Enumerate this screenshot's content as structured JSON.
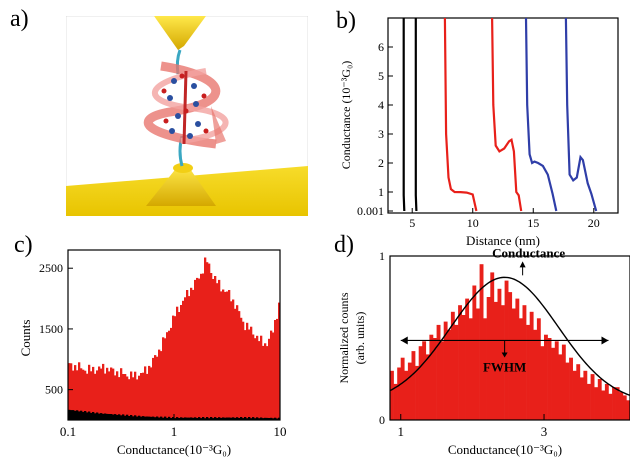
{
  "panels": {
    "a": {
      "letter": "a)"
    },
    "b": {
      "letter": "b)"
    },
    "c": {
      "letter": "c)"
    },
    "d": {
      "letter": "d)"
    }
  },
  "colors": {
    "red": "#e8201a",
    "blue": "#2f3ea8",
    "black": "#000000",
    "gold": "#f5d21a"
  },
  "chart_data": [
    {
      "type": "line",
      "panel": "b",
      "xlabel": "Distance (nm)",
      "ylabel": "Conductance (10⁻³G₀)",
      "xlim": [
        3,
        22
      ],
      "ylim": [
        0.001,
        7
      ],
      "y_scale": "break at 1 (log below, linear above)",
      "x_ticks": [
        5,
        10,
        15,
        20
      ],
      "y_ticks": [
        "0.001",
        "1",
        "2",
        "3",
        "4",
        "5",
        "6"
      ],
      "series": [
        {
          "color": "black",
          "x": [
            4.3,
            4.3,
            4.35
          ],
          "y": [
            7,
            0.3,
            0.001
          ]
        },
        {
          "color": "black",
          "x": [
            5.3,
            5.3,
            5.35
          ],
          "y": [
            7,
            0.3,
            0.001
          ]
        },
        {
          "color": "red",
          "x": [
            7.7,
            7.8,
            8.0,
            8.2,
            8.5,
            9.0,
            9.5,
            10.0,
            10.3
          ],
          "y": [
            7,
            3.0,
            1.5,
            1.1,
            1.0,
            0.95,
            0.8,
            0.4,
            0.001
          ]
        },
        {
          "color": "red",
          "x": [
            11.6,
            11.7,
            11.9,
            12.2,
            12.6,
            13.0,
            13.2,
            13.4,
            13.6,
            13.8,
            14.0
          ],
          "y": [
            7,
            4.0,
            2.6,
            2.4,
            2.5,
            2.75,
            2.8,
            2.4,
            1.0,
            0.3,
            0.001
          ]
        },
        {
          "color": "blue",
          "x": [
            14.4,
            14.5,
            14.7,
            14.9,
            15.1,
            15.4,
            15.8,
            16.2,
            16.6,
            16.9
          ],
          "y": [
            7,
            4.0,
            2.3,
            2.0,
            2.05,
            2.0,
            1.9,
            1.6,
            0.5,
            0.001
          ]
        },
        {
          "color": "blue",
          "x": [
            17.7,
            17.8,
            18.0,
            18.3,
            18.6,
            18.9,
            19.1,
            19.3,
            19.5,
            19.8,
            20.2
          ],
          "y": [
            7,
            4.0,
            1.6,
            1.4,
            1.5,
            2.2,
            2.1,
            1.7,
            1.3,
            0.5,
            0.001
          ]
        }
      ]
    },
    {
      "type": "bar",
      "panel": "c",
      "xlabel": "Conductance(10⁻³G₀)",
      "ylabel": "Counts",
      "x_scale": "log",
      "xlim": [
        0.1,
        10
      ],
      "ylim": [
        0,
        2800
      ],
      "x_ticks": [
        "0.1",
        "1",
        "10"
      ],
      "y_ticks": [
        "500",
        "1500",
        "2500"
      ],
      "series": [
        {
          "name": "",
          "color": "red",
          "x": [
            0.1,
            0.12,
            0.15,
            0.18,
            0.22,
            0.27,
            0.33,
            0.4,
            0.5,
            0.6,
            0.7,
            0.85,
            1.0,
            1.2,
            1.5,
            1.8,
            2.0,
            2.3,
            2.7,
            3.2,
            3.8,
            4.5,
            5.5,
            6.5,
            7.5,
            8.5,
            9.5,
            10
          ],
          "y": [
            900,
            880,
            820,
            830,
            860,
            800,
            760,
            720,
            760,
            900,
            1100,
            1400,
            1700,
            1950,
            2200,
            2400,
            2650,
            2400,
            2200,
            2100,
            1900,
            1600,
            1450,
            1300,
            1250,
            1450,
            1800,
            1950
          ]
        },
        {
          "name": "",
          "color": "black",
          "x": [
            0.1,
            0.2,
            0.5,
            1,
            2,
            5,
            10
          ],
          "y": [
            170,
            110,
            60,
            40,
            40,
            40,
            30
          ]
        }
      ]
    },
    {
      "type": "bar",
      "panel": "d",
      "xlabel": "Conductance(10⁻³G₀)",
      "ylabel": "Normalized counts (arb. units)",
      "xlim": [
        0.85,
        4.2
      ],
      "ylim": [
        0,
        1
      ],
      "x_ticks": [
        "1",
        "3"
      ],
      "y_ticks": [
        "0",
        "1"
      ],
      "bins": [
        0.85,
        0.9,
        0.95,
        1.0,
        1.05,
        1.1,
        1.15,
        1.2,
        1.25,
        1.3,
        1.35,
        1.4,
        1.45,
        1.5,
        1.55,
        1.6,
        1.65,
        1.7,
        1.75,
        1.8,
        1.85,
        1.9,
        1.95,
        2.0,
        2.05,
        2.1,
        2.15,
        2.2,
        2.25,
        2.3,
        2.35,
        2.4,
        2.45,
        2.5,
        2.55,
        2.6,
        2.65,
        2.7,
        2.75,
        2.8,
        2.85,
        2.9,
        2.95,
        3.0,
        3.05,
        3.1,
        3.15,
        3.2,
        3.25,
        3.3,
        3.35,
        3.4,
        3.45,
        3.5,
        3.55,
        3.6,
        3.65,
        3.7,
        3.75,
        3.8,
        3.85,
        3.9,
        3.95,
        4.0,
        4.05,
        4.1,
        4.15
      ],
      "values": [
        0.3,
        0.22,
        0.32,
        0.38,
        0.3,
        0.35,
        0.42,
        0.33,
        0.45,
        0.48,
        0.4,
        0.52,
        0.5,
        0.58,
        0.48,
        0.6,
        0.55,
        0.66,
        0.58,
        0.7,
        0.64,
        0.74,
        0.62,
        0.82,
        0.68,
        0.95,
        0.62,
        0.75,
        0.9,
        0.72,
        0.8,
        0.7,
        0.85,
        0.78,
        0.68,
        0.74,
        0.62,
        0.7,
        0.58,
        0.66,
        0.55,
        0.62,
        0.45,
        0.52,
        0.5,
        0.44,
        0.48,
        0.4,
        0.46,
        0.35,
        0.38,
        0.3,
        0.34,
        0.26,
        0.3,
        0.22,
        0.28,
        0.2,
        0.25,
        0.18,
        0.22,
        0.16,
        0.2,
        0.2,
        0.17,
        0.15,
        0.12
      ],
      "fit": {
        "type": "gaussian",
        "center": 2.45,
        "sigma": 0.75,
        "amplitude": 0.77,
        "offset": 0.1
      },
      "annotations": [
        {
          "text": "Conductance",
          "position": "above peak",
          "points_to": 2.45
        },
        {
          "text": "FWHM",
          "position": "below half-max line",
          "span": [
            1.0,
            3.9
          ]
        }
      ]
    }
  ]
}
